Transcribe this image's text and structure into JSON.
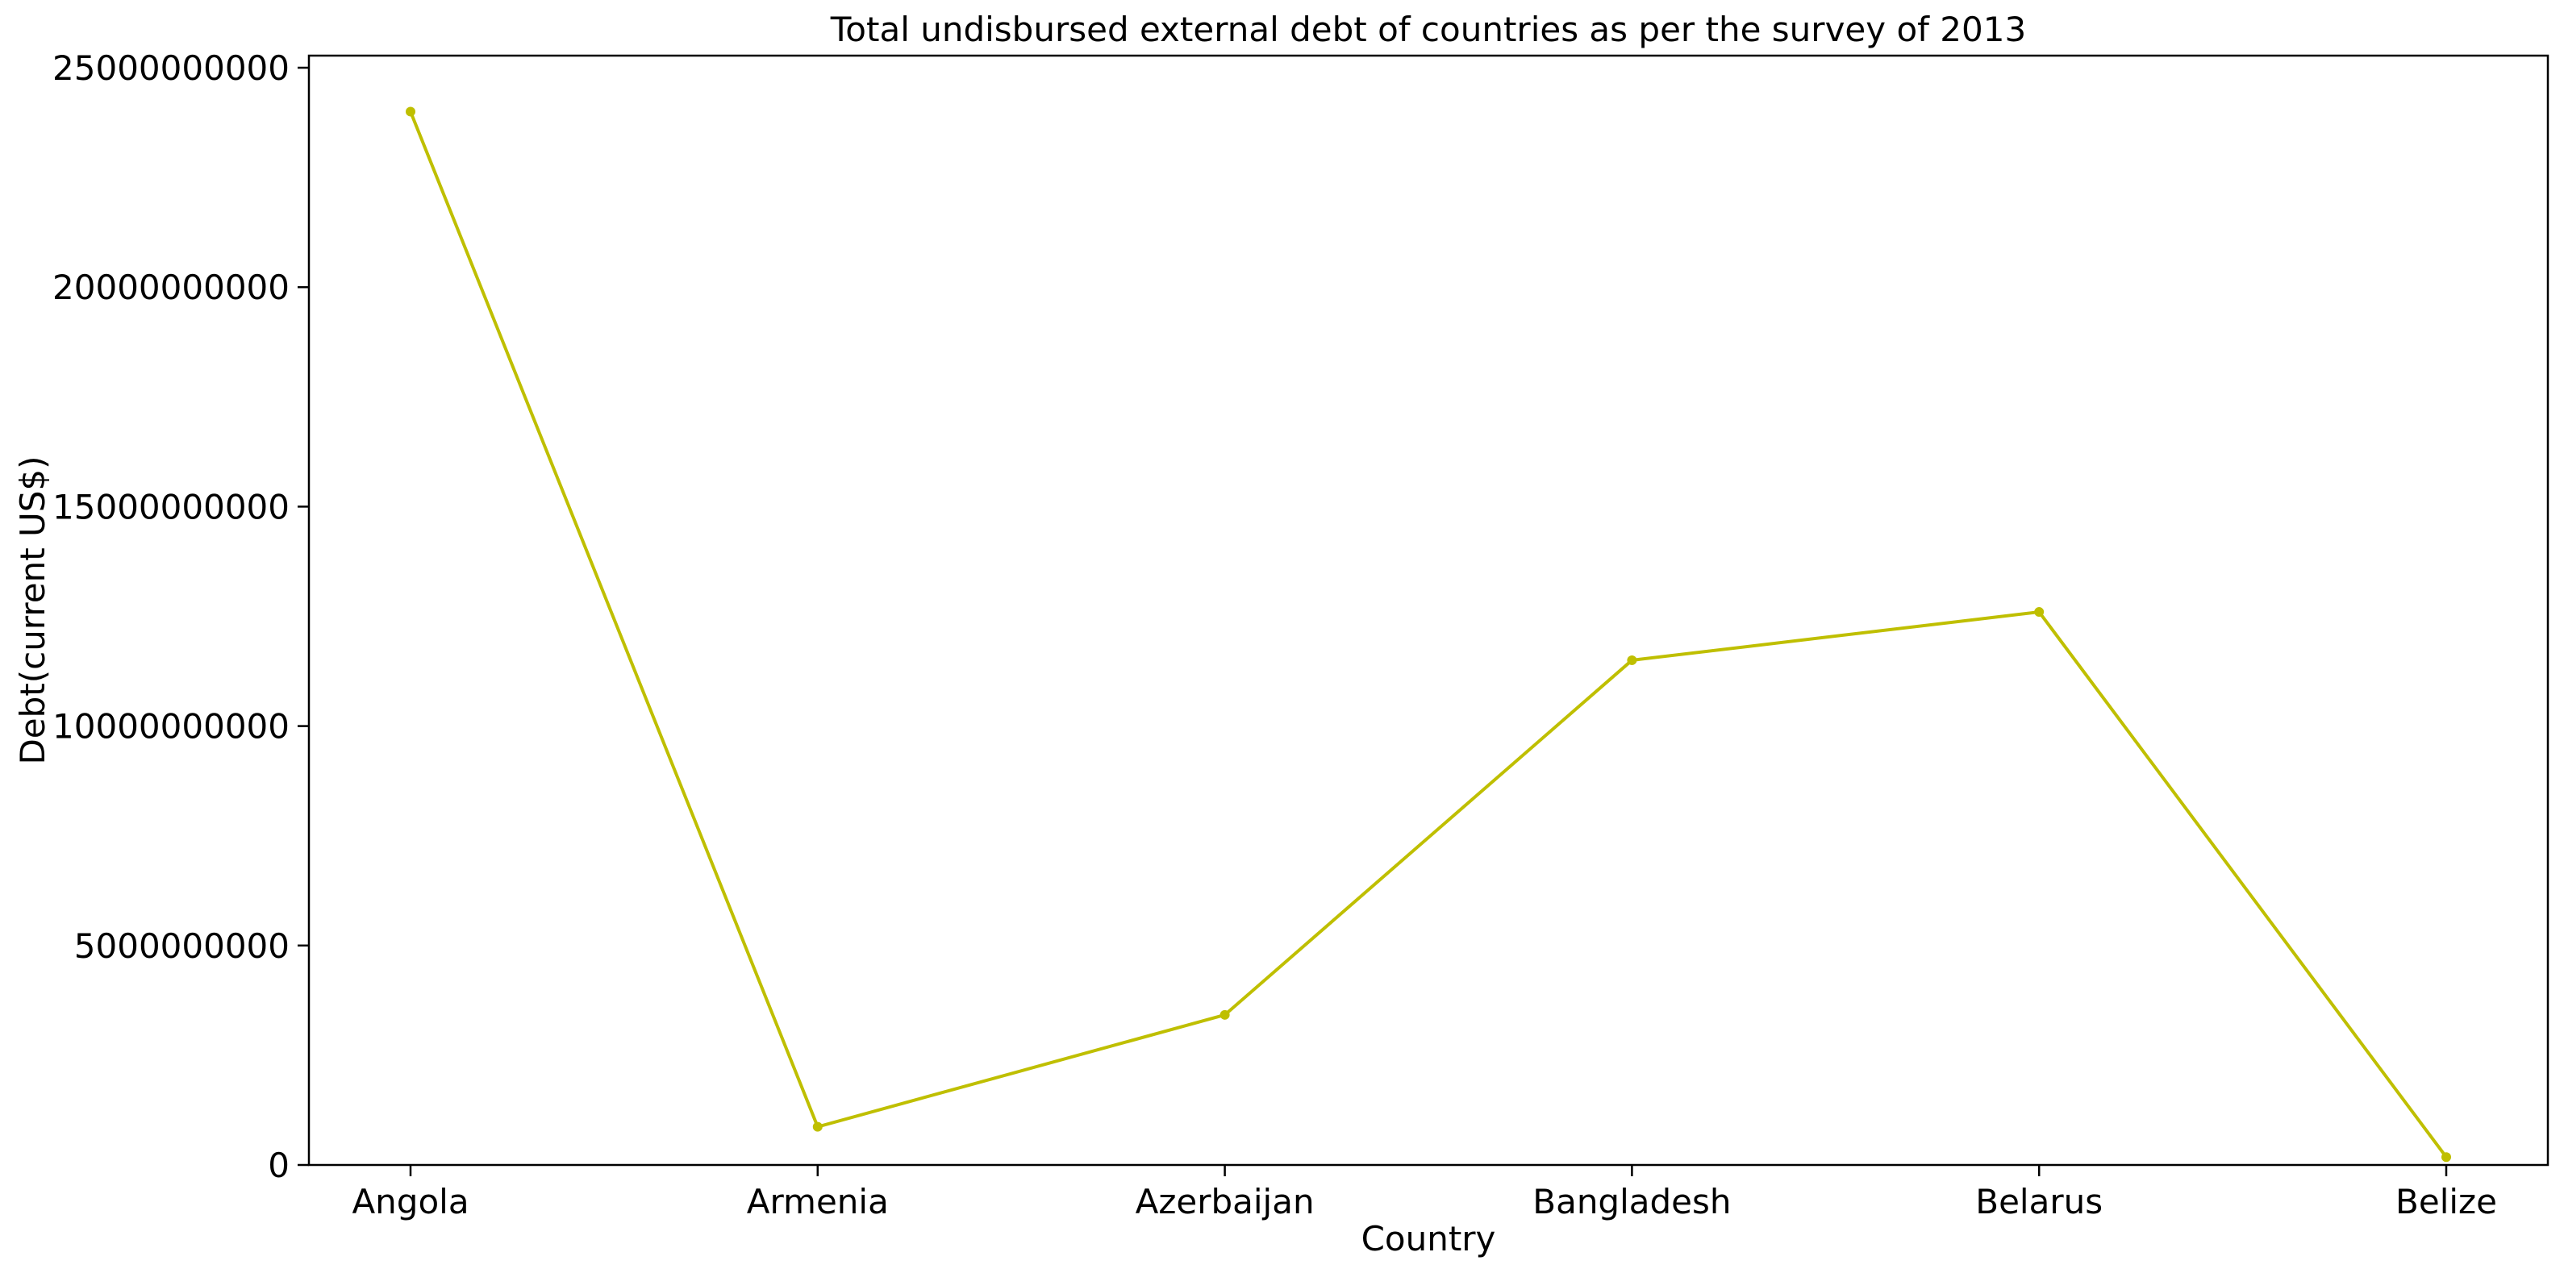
{
  "colors": {
    "series_line": "#bfbf00",
    "axes": "#000000",
    "background": "#ffffff"
  },
  "chart_data": {
    "type": "line",
    "title": "Total undisbursed external debt of countries as per the survey of 2013",
    "xlabel": "Country",
    "ylabel": "Debt(current US$)",
    "categories": [
      "Angola",
      "Armenia",
      "Azerbaijan",
      "Bangladesh",
      "Belarus",
      "Belize"
    ],
    "series": [
      {
        "values": [
          24000000000,
          870000000,
          3420000000,
          11500000000,
          12600000000,
          180000000
        ]
      }
    ],
    "ylim": [
      0,
      25000000000
    ],
    "yticks": [
      0,
      5000000000,
      10000000000,
      15000000000,
      20000000000,
      25000000000
    ],
    "ytick_labels": [
      "0",
      "5000000000",
      "10000000000",
      "15000000000",
      "20000000000",
      "25000000000"
    ],
    "grid": false,
    "legend": "none",
    "marker": "dot"
  }
}
